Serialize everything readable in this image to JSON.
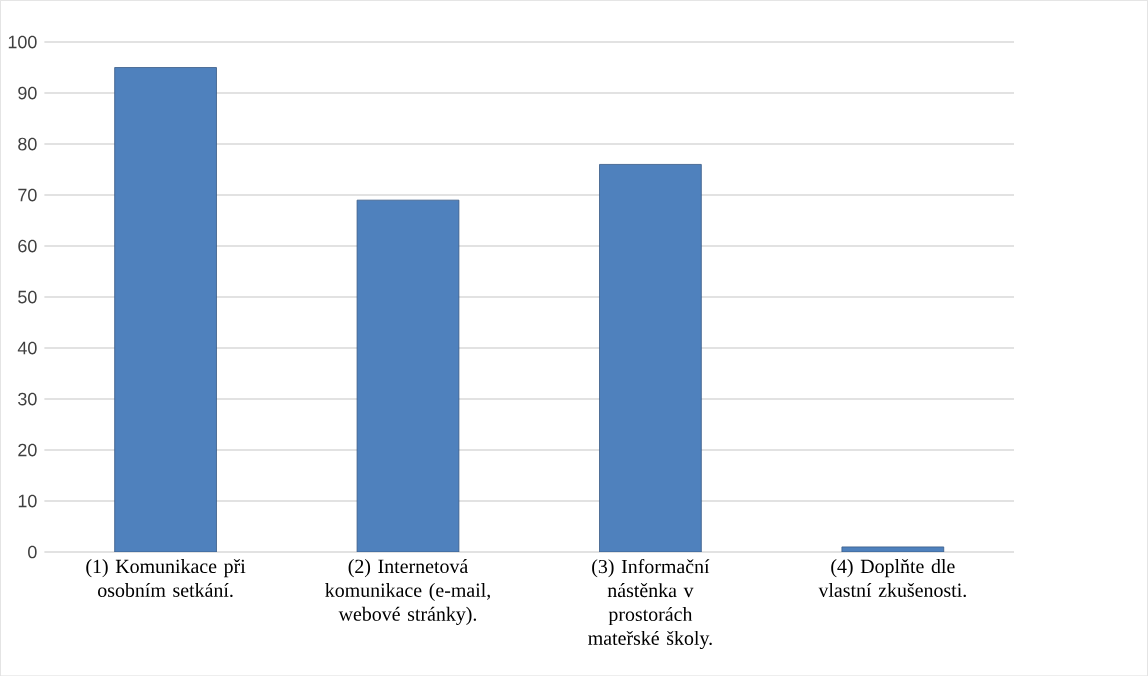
{
  "chart_data": {
    "type": "bar",
    "categories": [
      "(1) Komunikace při osobním setkání.",
      "(2) Internetová komunikace (e-mail, webové stránky).",
      "(3) Informační nástěnka v prostorách mateřské školy.",
      "(4) Doplňte dle vlastní zkušenosti."
    ],
    "values": [
      95,
      69,
      76,
      1
    ],
    "color": "#4f81bd",
    "ylim": [
      0,
      100
    ],
    "yticks": [
      0,
      10,
      20,
      30,
      40,
      50,
      60,
      70,
      80,
      90,
      100
    ],
    "grid": "y"
  }
}
